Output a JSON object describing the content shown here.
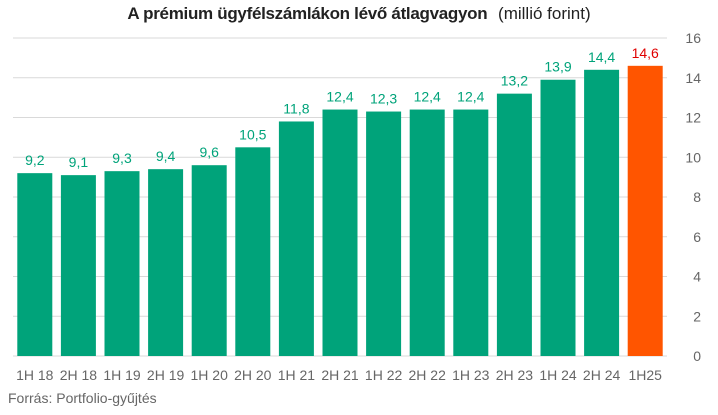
{
  "title": "A prémium ügyfélszámlákon lévő átlagvagyon",
  "unit_label": "(millió forint)",
  "source": "Forrás: Portfolio-gyűjtés",
  "colors": {
    "bar": "#00a37a",
    "highlight": "#ff5500",
    "label": "#00a37a",
    "highlight_label": "#e00000",
    "grid": "#d9d9d9",
    "tick": "#666666"
  },
  "chart_data": {
    "type": "bar",
    "title": "A prémium ügyfélszámlákon lévő átlagvagyon",
    "ylabel": "(millió forint)",
    "categories": [
      "1H 18",
      "2H 18",
      "1H 19",
      "2H 19",
      "1H 20",
      "2H 20",
      "1H 21",
      "2H 21",
      "1H 22",
      "2H 22",
      "1H 23",
      "2H 23",
      "1H 24",
      "2H 24",
      "1H25"
    ],
    "values": [
      9.2,
      9.1,
      9.3,
      9.4,
      9.6,
      10.5,
      11.8,
      12.4,
      12.3,
      12.4,
      12.4,
      13.2,
      13.9,
      14.4,
      14.6
    ],
    "value_labels": [
      "9,2",
      "9,1",
      "9,3",
      "9,4",
      "9,6",
      "10,5",
      "11,8",
      "12,4",
      "12,3",
      "12,4",
      "12,4",
      "13,2",
      "13,9",
      "14,4",
      "14,6"
    ],
    "highlight_index": 14,
    "ylim": [
      0,
      16
    ],
    "yticks": [
      0,
      2,
      4,
      6,
      8,
      10,
      12,
      14,
      16
    ],
    "y_axis_side": "right",
    "grid": true,
    "legend": "none"
  }
}
